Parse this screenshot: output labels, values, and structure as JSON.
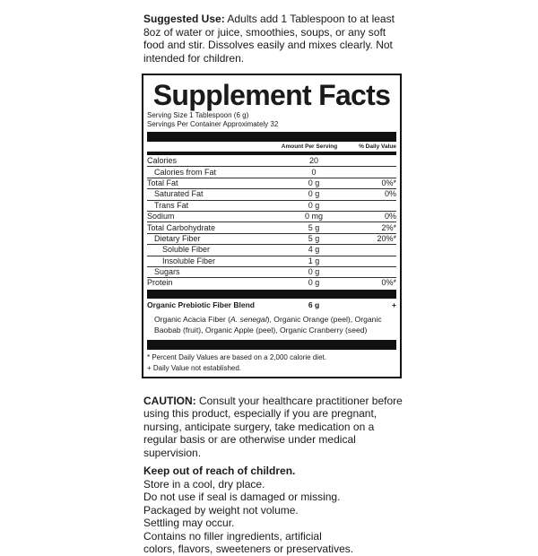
{
  "suggested_use": {
    "label": "Suggested Use:",
    "text": "Adults add 1 Tablespoon to at least 8oz of water or juice, smoothies, soups, or any soft food and stir. Dissolves easily and mixes clearly. Not intended for children."
  },
  "facts": {
    "title": "Supplement Facts",
    "serving_size": "Serving Size 1 Tablespoon (6 g)",
    "servings_per_container": "Servings Per Container Approximately 32",
    "col_amount": "Amount Per Serving",
    "col_dv": "% Daily Value",
    "rows": [
      {
        "name": "Calories",
        "amount": "20",
        "dv": ""
      },
      {
        "name": "Calories from Fat",
        "amount": "0",
        "dv": ""
      },
      {
        "name": "Total Fat",
        "amount": "0 g",
        "dv": "0%*"
      },
      {
        "name": "Saturated Fat",
        "amount": "0 g",
        "dv": "0%"
      },
      {
        "name": "Trans Fat",
        "amount": "0 g",
        "dv": ""
      },
      {
        "name": "Sodium",
        "amount": "0 mg",
        "dv": "0%"
      },
      {
        "name": "Total Carbohydrate",
        "amount": "5 g",
        "dv": "2%*"
      },
      {
        "name": "Dietary Fiber",
        "amount": "5 g",
        "dv": "20%*"
      },
      {
        "name": "Soluble Fiber",
        "amount": "4 g",
        "dv": ""
      },
      {
        "name": "Insoluble Fiber",
        "amount": "1 g",
        "dv": ""
      },
      {
        "name": "Sugars",
        "amount": "0 g",
        "dv": ""
      },
      {
        "name": "Protein",
        "amount": "0 g",
        "dv": "0%*"
      }
    ],
    "blend": {
      "name": "Organic Prebiotic Fiber Blend",
      "amount": "6 g",
      "dv": "+"
    },
    "ingredients_pre": "Organic Acacia Fiber (",
    "ingredients_italic": "A. senegal",
    "ingredients_post": "), Organic Orange (peel), Organic Baobab (fruit), Organic Apple (peel), Organic Cranberry (seed)",
    "footnote1": "* Percent Daily Values are based on a 2,000 calorie diet.",
    "footnote2": "+ Daily Value not established."
  },
  "caution": {
    "label": "CAUTION:",
    "text": "Consult your healthcare practitioner before using this product, especially if you are pregnant, nursing, anticipate surgery, take medication on a regular basis or are otherwise under medical supervision."
  },
  "storage": {
    "heading": "Keep out of reach of children.",
    "lines": [
      "Store in a cool, dry place.",
      "Do not use if seal is damaged or missing.",
      "Packaged by weight not volume.",
      "Settling may occur.",
      "Contains no filler ingredients, artificial",
      "colors, flavors, sweeteners or preservatives."
    ]
  }
}
